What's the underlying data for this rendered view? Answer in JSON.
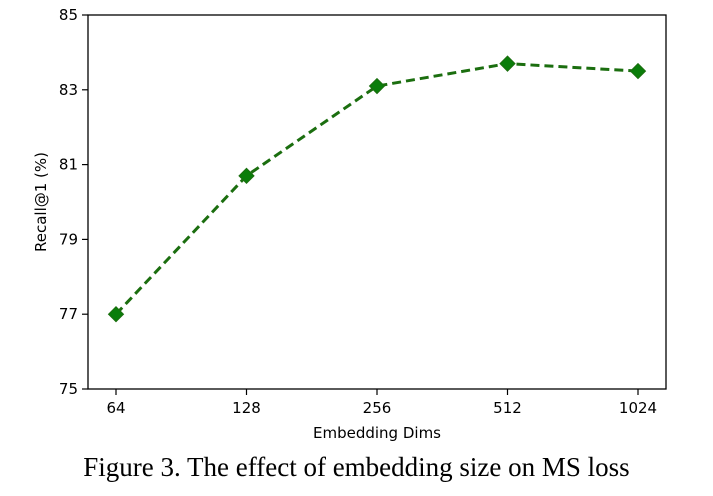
{
  "chart_data": {
    "type": "line",
    "categories": [
      "64",
      "128",
      "256",
      "512",
      "1024"
    ],
    "series": [
      {
        "values": [
          77.0,
          80.7,
          83.1,
          83.7,
          83.5
        ]
      }
    ],
    "xlabel": "Embedding Dims",
    "ylabel": "Recall@1 (%)",
    "ylim": [
      75,
      85
    ],
    "yticks": [
      75,
      77,
      79,
      81,
      83,
      85
    ],
    "grid": false,
    "line_style": "dashed",
    "marker": "diamond",
    "line_color": "#1b6e0f",
    "marker_color": "#0a7d0a"
  },
  "caption": "Figure 3. The effect of embedding size on MS loss"
}
